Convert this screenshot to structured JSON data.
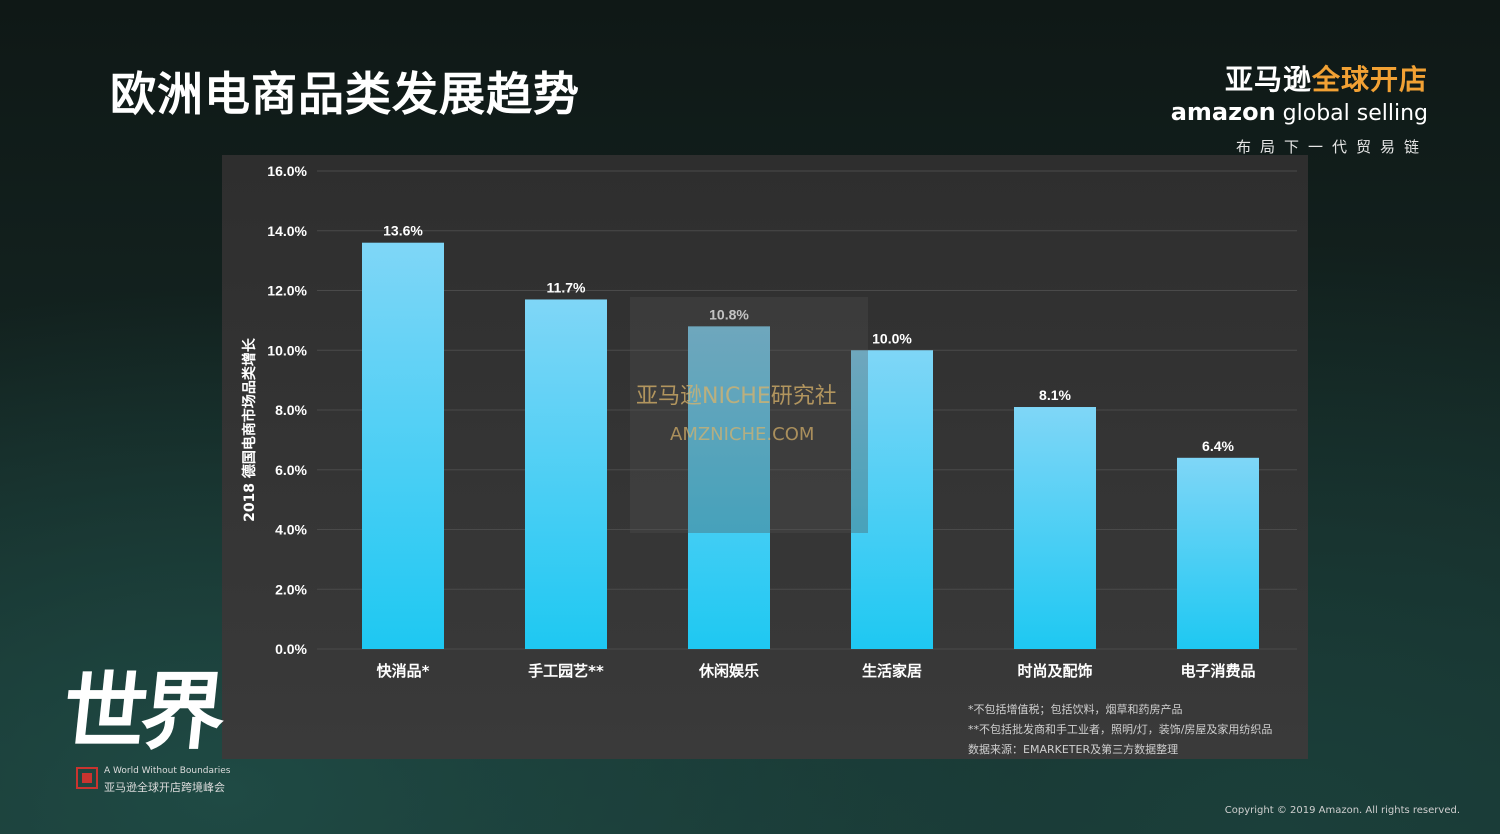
{
  "page": {
    "title": "欧洲电商品类发展趋势",
    "brand_cn_1": "亚马逊",
    "brand_cn_2": "全球开店",
    "brand_en_1": "amazon",
    "brand_en_2": " global selling",
    "brand_tagline": "布局下一代贸易链",
    "watermark_1": "亚马逊NICHE研究社",
    "watermark_2": "AMZNICHE.COM",
    "footnote_1": "*不包括增值税；包括饮料，烟草和药房产品",
    "footnote_2": "**不包括批发商和手工业者，照明/灯，装饰/房屋及家用纺织品",
    "footnote_3": "数据来源：EMARKETER及第三方数据整理",
    "event_logo": "世界",
    "event_en": "A World Without Boundaries",
    "event_cn": "亚马逊全球开店跨境峰会",
    "copyright": "Copyright © 2019 Amazon. All rights reserved."
  },
  "colors": {
    "bar_top": "#7fd6f7",
    "bar_bottom": "#1ec8f2",
    "axis_text": "#ffffff",
    "grid": "#4a4a4a",
    "panel": "#333333"
  },
  "chart_data": {
    "type": "bar",
    "categories": [
      "快消品*",
      "手工园艺**",
      "休闲娱乐",
      "生活家居",
      "时尚及配饰",
      "电子消费品"
    ],
    "values": [
      13.6,
      11.7,
      10.8,
      10.0,
      8.1,
      6.4
    ],
    "data_labels": [
      "13.6%",
      "11.7%",
      "10.8%",
      "10.0%",
      "8.1%",
      "6.4%"
    ],
    "title": "",
    "xlabel": "",
    "ylabel": "2018 德国电商市场品类增长",
    "ylim": [
      0,
      16
    ],
    "yticks": [
      0,
      2,
      4,
      6,
      8,
      10,
      12,
      14,
      16
    ],
    "ytick_labels": [
      "0.0%",
      "2.0%",
      "4.0%",
      "6.0%",
      "8.0%",
      "10.0%",
      "12.0%",
      "14.0%",
      "16.0%"
    ],
    "grid": true,
    "legend": "none"
  }
}
